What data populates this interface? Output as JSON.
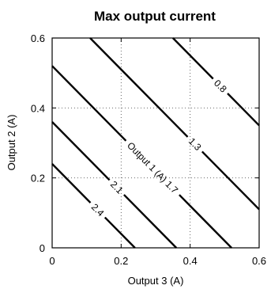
{
  "chart_data": {
    "type": "line",
    "title": "Max output current",
    "xlabel": "Output 3 (A)",
    "ylabel": "Output 2 (A)",
    "xlim": [
      0,
      0.6
    ],
    "ylim": [
      0,
      0.6
    ],
    "xticks": [
      "0",
      "0.2",
      "0.4",
      "0.6"
    ],
    "yticks": [
      "0",
      "0.2",
      "0.4",
      "0.6"
    ],
    "xtick_values": [
      0,
      0.2,
      0.4,
      0.6
    ],
    "ytick_values": [
      0,
      0.2,
      0.4,
      0.6
    ],
    "grid": true,
    "series": [
      {
        "label": "2.4",
        "x": [
          0,
          0.24
        ],
        "y": [
          0.24,
          0
        ]
      },
      {
        "label": "2.1",
        "x": [
          0,
          0.36
        ],
        "y": [
          0.36,
          0
        ]
      },
      {
        "label": "Output 1 (A) 1.7",
        "x": [
          0,
          0.52
        ],
        "y": [
          0.52,
          0
        ]
      },
      {
        "label": "1.3",
        "x": [
          0.11,
          0.6
        ],
        "y": [
          0.6,
          0.11
        ]
      },
      {
        "label": "0.8",
        "x": [
          0.35,
          0.6
        ],
        "y": [
          0.6,
          0.35
        ]
      }
    ]
  }
}
